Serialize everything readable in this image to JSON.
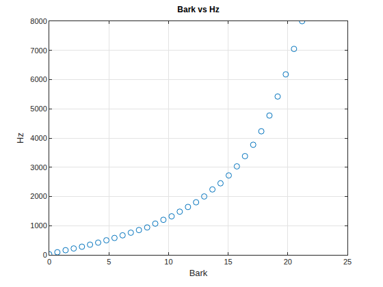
{
  "chart_data": {
    "type": "scatter",
    "title": "Bark vs Hz",
    "x_label": "Bark",
    "y_label": "Hz",
    "x": [
      0,
      0.68,
      1.37,
      2.05,
      2.74,
      3.42,
      4.1,
      4.79,
      5.47,
      6.15,
      6.84,
      7.52,
      8.21,
      8.89,
      9.57,
      10.26,
      10.94,
      11.63,
      12.31,
      12.99,
      13.68,
      14.36,
      15.05,
      15.73,
      16.41,
      17.1,
      17.78,
      18.46,
      19.15,
      19.83,
      20.52,
      21.2
    ],
    "values": [
      20,
      90,
      160,
      220,
      280,
      350,
      420,
      500,
      580,
      670,
      760,
      850,
      940,
      1070,
      1200,
      1320,
      1480,
      1640,
      1800,
      2000,
      2240,
      2450,
      2720,
      3030,
      3380,
      3770,
      4230,
      4770,
      5420,
      6180,
      7050,
      8000
    ],
    "color": "#0072bd",
    "marker": "circle",
    "xlim": [
      0,
      25
    ],
    "xticks": [
      0,
      5,
      10,
      15,
      20,
      25
    ],
    "ylim": [
      0,
      8000
    ],
    "yticks": [
      0,
      1000,
      2000,
      3000,
      4000,
      5000,
      6000,
      7000,
      8000
    ],
    "grid": true
  }
}
